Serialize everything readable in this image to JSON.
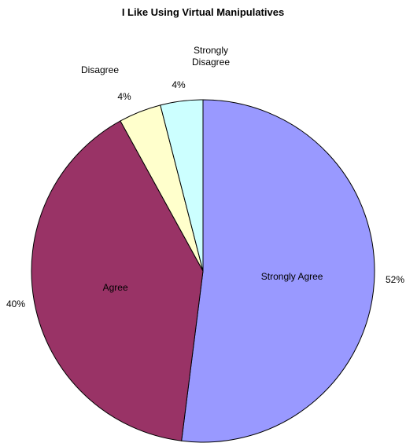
{
  "chart_data": {
    "type": "pie",
    "title": "I Like Using Virtual Manipulatives",
    "slices": [
      {
        "label": "Strongly Agree",
        "value": 52,
        "percent_label": "52%",
        "color": "#9999ff"
      },
      {
        "label": "Agree",
        "value": 40,
        "percent_label": "40%",
        "color": "#993366"
      },
      {
        "label": "Disagree",
        "value": 4,
        "percent_label": "4%",
        "color": "#ffffcc"
      },
      {
        "label": "Strongly Disagree",
        "value": 4,
        "percent_label": "4%",
        "color": "#ccffff"
      }
    ],
    "start_angle": "12 o'clock",
    "direction": "clockwise",
    "legend": "none",
    "outline_color": "#000000"
  }
}
